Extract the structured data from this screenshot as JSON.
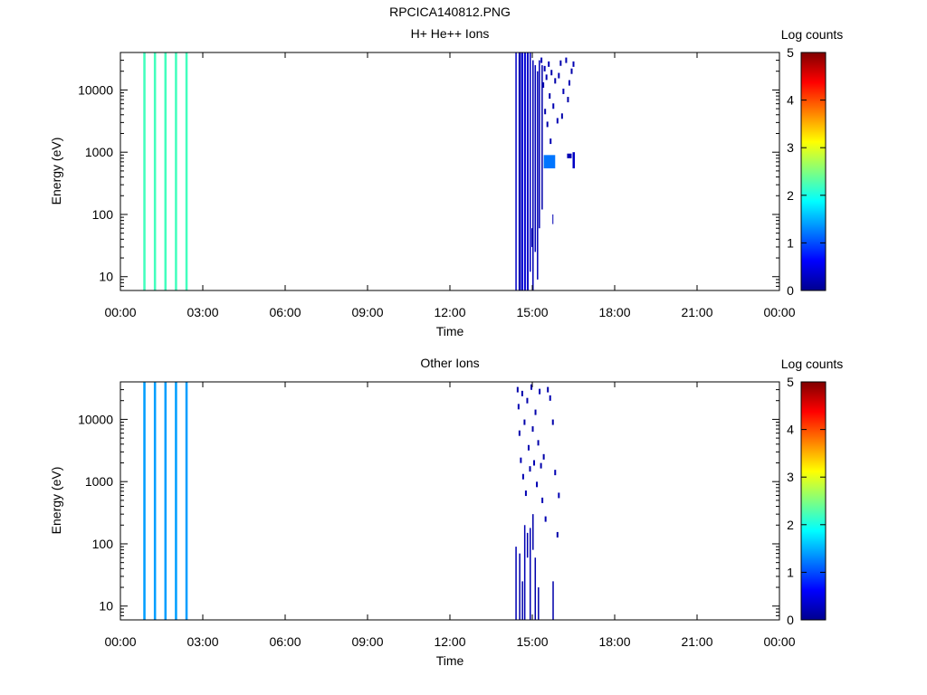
{
  "figure_title": "RPCICA140812.PNG",
  "chart_data": [
    {
      "type": "heatmap",
      "title": "H+ He++ Ions",
      "xlabel": "Time",
      "ylabel": "Energy (eV)",
      "y_scale": "log",
      "xlim": [
        "00:00",
        "24:00"
      ],
      "ylim": [
        6,
        40000
      ],
      "x_tick_labels": [
        "00:00",
        "03:00",
        "06:00",
        "09:00",
        "12:00",
        "15:00",
        "18:00",
        "21:00",
        "00:00"
      ],
      "y_tick_values": [
        10,
        100,
        1000,
        10000
      ],
      "y_tick_labels": [
        "10",
        "100",
        "1000",
        "10000"
      ],
      "colorbar": {
        "label": "Log counts",
        "range": [
          0,
          5
        ],
        "tick_labels": [
          "0",
          "1",
          "2",
          "3",
          "4",
          "5"
        ]
      },
      "grid": false,
      "full_range_columns": [
        {
          "start": "00:50",
          "end": "00:55",
          "log_counts": 2.2
        },
        {
          "start": "01:13",
          "end": "01:18",
          "log_counts": 2.2
        },
        {
          "start": "01:36",
          "end": "01:41",
          "log_counts": 2.2
        },
        {
          "start": "01:59",
          "end": "02:04",
          "log_counts": 2.2
        },
        {
          "start": "02:22",
          "end": "02:27",
          "log_counts": 2.2
        }
      ],
      "segments": [
        {
          "start": "14:23",
          "end": "14:26",
          "e_low": 6,
          "e_high": 40000,
          "log_counts": 0.3
        },
        {
          "start": "14:30",
          "end": "14:35",
          "e_low": 6,
          "e_high": 40000,
          "log_counts": 0.2
        },
        {
          "start": "14:36",
          "end": "14:40",
          "e_low": 6,
          "e_high": 40000,
          "log_counts": 0.35
        },
        {
          "start": "14:42",
          "end": "14:46",
          "e_low": 6,
          "e_high": 40000,
          "log_counts": 0.4
        },
        {
          "start": "14:48",
          "end": "14:52",
          "e_low": 6,
          "e_high": 40000,
          "log_counts": 0.3
        },
        {
          "start": "14:54",
          "end": "14:57",
          "e_low": 12,
          "e_high": 40000,
          "log_counts": 0.3
        },
        {
          "start": "15:00",
          "end": "15:03",
          "e_low": 6,
          "e_high": 30000,
          "log_counts": 0.2
        },
        {
          "start": "15:05",
          "end": "15:08",
          "e_low": 25,
          "e_high": 25000,
          "log_counts": 0.25
        },
        {
          "start": "15:10",
          "end": "15:13",
          "e_low": 9,
          "e_high": 20000,
          "log_counts": 0.2
        },
        {
          "start": "15:14",
          "end": "15:17",
          "e_low": 60,
          "e_high": 30000,
          "log_counts": 0.2
        },
        {
          "start": "15:20",
          "end": "15:23",
          "e_low": 120,
          "e_high": 25000,
          "log_counts": 0.15
        },
        {
          "start": "15:25",
          "end": "15:50",
          "e_low": 550,
          "e_high": 900,
          "log_counts": 1.2
        },
        {
          "start": "15:44",
          "end": "15:46",
          "e_low": 70,
          "e_high": 100,
          "log_counts": 0.2
        },
        {
          "start": "16:16",
          "end": "16:26",
          "e_low": 800,
          "e_high": 950,
          "log_counts": 0.2
        },
        {
          "start": "16:28",
          "end": "16:33",
          "e_low": 550,
          "e_high": 1000,
          "log_counts": 0.3
        },
        {
          "start": "14:58",
          "end": "15:00",
          "e_low": 30,
          "e_high": 60,
          "log_counts": 0.15
        }
      ],
      "scatter_pixels": [
        {
          "t": "15:20",
          "e": 30000,
          "log_counts": 0.2
        },
        {
          "t": "15:24",
          "e": 12000,
          "log_counts": 0.15
        },
        {
          "t": "15:27",
          "e": 22000,
          "log_counts": 0.2
        },
        {
          "t": "15:28",
          "e": 4500,
          "log_counts": 0.15
        },
        {
          "t": "15:31",
          "e": 16000,
          "log_counts": 0.2
        },
        {
          "t": "15:33",
          "e": 2800,
          "log_counts": 0.15
        },
        {
          "t": "15:36",
          "e": 26000,
          "log_counts": 0.2
        },
        {
          "t": "15:38",
          "e": 8000,
          "log_counts": 0.15
        },
        {
          "t": "15:40",
          "e": 1500,
          "log_counts": 0.2
        },
        {
          "t": "15:42",
          "e": 19000,
          "log_counts": 0.15
        },
        {
          "t": "15:46",
          "e": 5500,
          "log_counts": 0.2
        },
        {
          "t": "15:50",
          "e": 14000,
          "log_counts": 0.15
        },
        {
          "t": "15:55",
          "e": 3200,
          "log_counts": 0.2
        },
        {
          "t": "16:02",
          "e": 27000,
          "log_counts": 0.15
        },
        {
          "t": "16:08",
          "e": 9500,
          "log_counts": 0.2
        },
        {
          "t": "16:14",
          "e": 30000,
          "log_counts": 0.2
        },
        {
          "t": "16:18",
          "e": 7000,
          "log_counts": 0.15
        },
        {
          "t": "16:21",
          "e": 13000,
          "log_counts": 0.2
        },
        {
          "t": "16:26",
          "e": 20000,
          "log_counts": 0.15
        },
        {
          "t": "16:30",
          "e": 26000,
          "log_counts": 0.2
        },
        {
          "t": "16:05",
          "e": 3800,
          "log_counts": 0.15
        },
        {
          "t": "15:58",
          "e": 17000,
          "log_counts": 0.2
        }
      ]
    },
    {
      "type": "heatmap",
      "title": "Other Ions",
      "xlabel": "Time",
      "ylabel": "Energy (eV)",
      "y_scale": "log",
      "xlim": [
        "00:00",
        "24:00"
      ],
      "ylim": [
        6,
        40000
      ],
      "x_tick_labels": [
        "00:00",
        "03:00",
        "06:00",
        "09:00",
        "12:00",
        "15:00",
        "18:00",
        "21:00",
        "00:00"
      ],
      "y_tick_values": [
        10,
        100,
        1000,
        10000
      ],
      "y_tick_labels": [
        "10",
        "100",
        "1000",
        "10000"
      ],
      "colorbar": {
        "label": "Log counts",
        "range": [
          0,
          5
        ],
        "tick_labels": [
          "0",
          "1",
          "2",
          "3",
          "4",
          "5"
        ]
      },
      "grid": false,
      "full_range_columns": [
        {
          "start": "00:50",
          "end": "00:55",
          "log_counts": 1.4
        },
        {
          "start": "01:13",
          "end": "01:18",
          "log_counts": 1.4
        },
        {
          "start": "01:36",
          "end": "01:41",
          "log_counts": 1.4
        },
        {
          "start": "01:59",
          "end": "02:04",
          "log_counts": 1.4
        },
        {
          "start": "02:22",
          "end": "02:27",
          "log_counts": 1.4
        }
      ],
      "segments": [
        {
          "start": "14:23",
          "end": "14:26",
          "e_low": 6,
          "e_high": 90,
          "log_counts": 0.2
        },
        {
          "start": "14:31",
          "end": "14:34",
          "e_low": 6,
          "e_high": 70,
          "log_counts": 0.15
        },
        {
          "start": "14:37",
          "end": "14:40",
          "e_low": 6,
          "e_high": 25,
          "log_counts": 0.15
        },
        {
          "start": "14:42",
          "end": "14:45",
          "e_low": 6,
          "e_high": 200,
          "log_counts": 0.2
        },
        {
          "start": "14:48",
          "end": "14:51",
          "e_low": 60,
          "e_high": 150,
          "log_counts": 0.15
        },
        {
          "start": "14:54",
          "end": "14:57",
          "e_low": 6,
          "e_high": 180,
          "log_counts": 0.2
        },
        {
          "start": "15:00",
          "end": "15:03",
          "e_low": 80,
          "e_high": 300,
          "log_counts": 0.15
        },
        {
          "start": "15:05",
          "end": "15:08",
          "e_low": 6,
          "e_high": 60,
          "log_counts": 0.15
        },
        {
          "start": "15:12",
          "end": "15:15",
          "e_low": 6,
          "e_high": 20,
          "log_counts": 0.15
        },
        {
          "start": "15:44",
          "end": "15:47",
          "e_low": 6,
          "e_high": 25,
          "log_counts": 0.15
        }
      ],
      "scatter_pixels": [
        {
          "t": "14:28",
          "e": 30000,
          "log_counts": 0.15
        },
        {
          "t": "14:30",
          "e": 16000,
          "log_counts": 0.2
        },
        {
          "t": "14:32",
          "e": 6000,
          "log_counts": 0.15
        },
        {
          "t": "14:35",
          "e": 2200,
          "log_counts": 0.2
        },
        {
          "t": "14:38",
          "e": 26000,
          "log_counts": 0.15
        },
        {
          "t": "14:40",
          "e": 1200,
          "log_counts": 0.2
        },
        {
          "t": "14:43",
          "e": 9000,
          "log_counts": 0.15
        },
        {
          "t": "14:46",
          "e": 650,
          "log_counts": 0.2
        },
        {
          "t": "14:49",
          "e": 20000,
          "log_counts": 0.15
        },
        {
          "t": "14:52",
          "e": 3500,
          "log_counts": 0.2
        },
        {
          "t": "14:55",
          "e": 1600,
          "log_counts": 0.15
        },
        {
          "t": "14:58",
          "e": 33000,
          "log_counts": 0.2
        },
        {
          "t": "15:01",
          "e": 7000,
          "log_counts": 0.15
        },
        {
          "t": "15:04",
          "e": 2000,
          "log_counts": 0.2
        },
        {
          "t": "15:07",
          "e": 13000,
          "log_counts": 0.15
        },
        {
          "t": "15:10",
          "e": 900,
          "log_counts": 0.2
        },
        {
          "t": "15:13",
          "e": 4200,
          "log_counts": 0.15
        },
        {
          "t": "15:16",
          "e": 28000,
          "log_counts": 0.2
        },
        {
          "t": "15:19",
          "e": 1800,
          "log_counts": 0.15
        },
        {
          "t": "15:22",
          "e": 500,
          "log_counts": 0.2
        },
        {
          "t": "15:25",
          "e": 2500,
          "log_counts": 0.15
        },
        {
          "t": "15:29",
          "e": 250,
          "log_counts": 0.2
        },
        {
          "t": "15:34",
          "e": 30000,
          "log_counts": 0.15
        },
        {
          "t": "15:39",
          "e": 22000,
          "log_counts": 0.2
        },
        {
          "t": "15:45",
          "e": 9000,
          "log_counts": 0.15
        },
        {
          "t": "15:50",
          "e": 1400,
          "log_counts": 0.2
        },
        {
          "t": "15:55",
          "e": 140,
          "log_counts": 0.15
        },
        {
          "t": "15:58",
          "e": 600,
          "log_counts": 0.2
        }
      ]
    }
  ]
}
